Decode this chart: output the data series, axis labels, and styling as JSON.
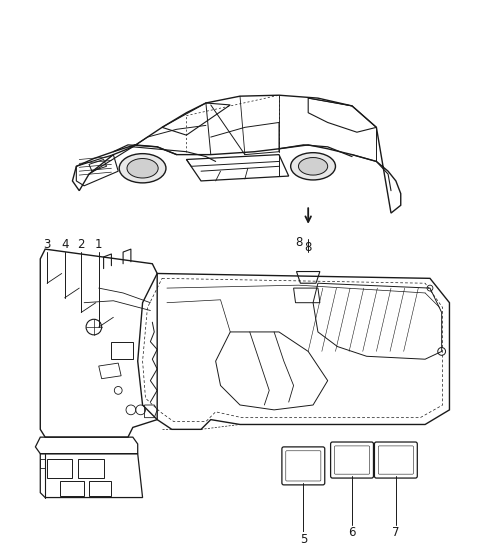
{
  "background_color": "#ffffff",
  "figure_width": 4.8,
  "figure_height": 5.45,
  "dpi": 100,
  "line_color": "#1a1a1a",
  "text_color": "#1a1a1a",
  "font_size": 8.5,
  "arrow_color": "#1a1a1a"
}
